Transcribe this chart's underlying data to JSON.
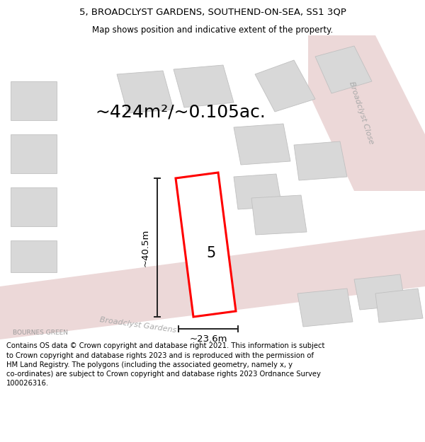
{
  "title_line1": "5, BROADCLYST GARDENS, SOUTHEND-ON-SEA, SS1 3QP",
  "title_line2": "Map shows position and indicative extent of the property.",
  "area_text": "~424m²/~0.105ac.",
  "width_label": "~23.6m",
  "height_label": "~40.5m",
  "plot_number": "5",
  "bournes_green": "BOURNES GREEN",
  "broadclyst_gardens": "Broadclyst Gardens",
  "broadclyst_close": "Broadclyst Close",
  "footer_text": "Contains OS data © Crown copyright and database right 2021. This information is subject to Crown copyright and database rights 2023 and is reproduced with the permission of HM Land Registry. The polygons (including the associated geometry, namely x, y co-ordinates) are subject to Crown copyright and database rights 2023 Ordnance Survey 100026316.",
  "bg_color": "#f5f0f0",
  "road_fill": "#ecd8d8",
  "building_fill": "#d8d8d8",
  "building_edge": "#c0c0c0",
  "plot_fill": "#ffffff",
  "plot_edge": "#ff0000",
  "dim_color": "#222222",
  "road_label_color": "#aaaaaa",
  "title_fontsize": 9.5,
  "subtitle_fontsize": 8.5,
  "footer_fontsize": 7.2,
  "area_fontsize": 18,
  "label_fontsize": 9.5,
  "plot_label_fontsize": 15
}
